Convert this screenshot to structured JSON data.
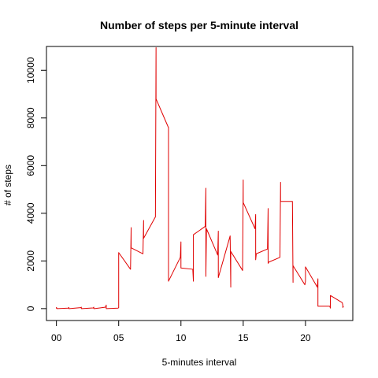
{
  "chart_data": {
    "type": "line",
    "title": "Number of steps per 5-minute interval",
    "xlabel": "5-minutes interval",
    "ylabel": "# of steps",
    "xlim": [
      -0.8,
      23.8
    ],
    "ylim": [
      -500,
      11000
    ],
    "x_ticks": [
      0,
      5,
      10,
      15,
      20
    ],
    "x_tick_labels": [
      "00",
      "05",
      "10",
      "15",
      "20"
    ],
    "y_ticks": [
      0,
      2000,
      4000,
      6000,
      8000,
      10000
    ],
    "y_tick_labels": [
      "0",
      "2000",
      "4000",
      "6000",
      "8000",
      "10000"
    ],
    "grid": false,
    "series": [
      {
        "color": "#e00000",
        "x": [
          0.0,
          0.0,
          0.05,
          0.1,
          0.95,
          1.0,
          1.0,
          1.05,
          1.95,
          2.0,
          2.0,
          2.05,
          2.95,
          3.0,
          3.0,
          3.05,
          3.95,
          4.0,
          4.0,
          4.05,
          4.95,
          5.0,
          5.0,
          5.95,
          6.0,
          6.0,
          6.95,
          7.0,
          7.0,
          7.95,
          8.0,
          8.0,
          8.95,
          9.0,
          9.0,
          9.95,
          10.0,
          10.0,
          10.05,
          10.95,
          11.0,
          11.0,
          11.95,
          12.0,
          12.0,
          12.05,
          12.95,
          13.0,
          13.0,
          13.95,
          14.0,
          14.0,
          14.95,
          15.0,
          15.0,
          15.95,
          16.0,
          16.0,
          16.05,
          16.95,
          17.0,
          17.0,
          17.05,
          17.95,
          18.0,
          18.0,
          18.05,
          18.95,
          19.0,
          19.0,
          19.95,
          20.0,
          20.0,
          20.95,
          21.0,
          21.0,
          21.95,
          22.0,
          22.0,
          22.95,
          23.0,
          23.0,
          23.05
        ],
        "y": [
          0,
          50,
          0,
          0,
          20,
          50,
          0,
          0,
          40,
          60,
          0,
          0,
          30,
          60,
          0,
          0,
          60,
          150,
          0,
          0,
          20,
          40,
          2350,
          1650,
          3400,
          2550,
          2300,
          3700,
          2950,
          3850,
          10950,
          8800,
          7650,
          7600,
          1150,
          2150,
          2800,
          1700,
          1700,
          1650,
          1150,
          3100,
          3450,
          5050,
          1350,
          3350,
          2250,
          3250,
          1300,
          3050,
          900,
          2400,
          1600,
          5400,
          4450,
          3350,
          3950,
          2050,
          2300,
          2500,
          4200,
          1900,
          1950,
          2150,
          5300,
          4500,
          4500,
          4500,
          1100,
          1800,
          1000,
          1150,
          1750,
          900,
          1250,
          100,
          100,
          20,
          550,
          250,
          150,
          50,
          100
        ]
      }
    ]
  }
}
